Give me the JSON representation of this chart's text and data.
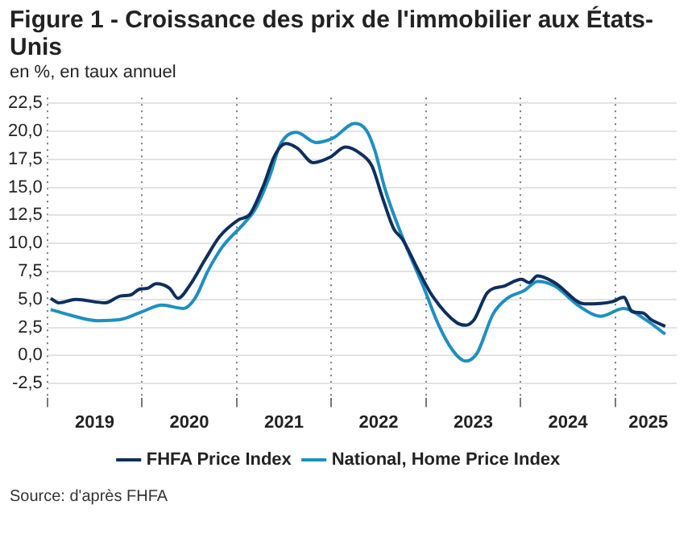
{
  "chart_data": {
    "type": "line",
    "title": "Figure 1 - Croissance des prix de l'immobilier aux États-Unis",
    "subtitle": "en %, en taux annuel",
    "annotations": [
      "Source: d'après FHFA"
    ],
    "series": [
      {
        "name": "FHFA Price Index",
        "color": "#0d2f5e",
        "x": [
          2019.035,
          2019.12,
          2019.3,
          2019.61,
          2019.77,
          2019.88,
          2019.97,
          2020.06,
          2020.15,
          2020.29,
          2020.38,
          2020.5,
          2020.67,
          2020.82,
          2021.02,
          2021.14,
          2021.29,
          2021.4,
          2021.52,
          2021.64,
          2021.81,
          2021.99,
          2022.15,
          2022.31,
          2022.43,
          2022.54,
          2022.66,
          2022.75,
          2022.92,
          2023.07,
          2023.33,
          2023.42,
          2023.51,
          2023.65,
          2023.83,
          2024.01,
          2024.09,
          2024.18,
          2024.36,
          2024.68,
          2024.97,
          2025.09,
          2025.18,
          2025.29,
          2025.38,
          2025.53
        ],
        "values": [
          5.1,
          4.7,
          5.0,
          4.7,
          5.3,
          5.4,
          5.9,
          6.0,
          6.4,
          6.0,
          5.1,
          6.2,
          8.6,
          10.6,
          12.1,
          12.6,
          15.3,
          17.8,
          18.9,
          18.5,
          17.2,
          17.7,
          18.6,
          18.0,
          16.9,
          14.1,
          11.3,
          10.4,
          7.6,
          5.3,
          2.9,
          2.7,
          3.2,
          5.6,
          6.2,
          6.8,
          6.5,
          7.1,
          6.5,
          4.6,
          4.8,
          5.2,
          3.9,
          3.8,
          3.2,
          2.6
        ]
      },
      {
        "name": "National, Home Price Index",
        "color": "#1f8fbf",
        "x": [
          2019.035,
          2019.24,
          2019.53,
          2019.77,
          2020.0,
          2020.21,
          2020.44,
          2020.56,
          2020.7,
          2020.85,
          2021.08,
          2021.2,
          2021.35,
          2021.46,
          2021.63,
          2021.84,
          2022.02,
          2022.25,
          2022.37,
          2022.46,
          2022.57,
          2022.75,
          2022.98,
          2023.13,
          2023.28,
          2023.42,
          2023.54,
          2023.71,
          2023.86,
          2024.04,
          2024.18,
          2024.36,
          2024.62,
          2024.85,
          2025.09,
          2025.32,
          2025.53
        ],
        "values": [
          4.1,
          3.6,
          3.1,
          3.2,
          3.9,
          4.5,
          4.2,
          5.1,
          7.6,
          9.7,
          11.8,
          13.1,
          16.0,
          18.8,
          19.9,
          19.0,
          19.4,
          20.7,
          20.1,
          18.3,
          14.8,
          10.6,
          6.0,
          2.8,
          0.5,
          -0.5,
          0.2,
          3.7,
          5.1,
          5.8,
          6.6,
          6.2,
          4.4,
          3.5,
          4.2,
          3.2,
          1.9
        ]
      }
    ],
    "xlim": [
      2019,
      2025.65
    ],
    "xticks": [
      {
        "value": 2019,
        "label": null
      },
      {
        "value": 2019.5,
        "label": "2019"
      },
      {
        "value": 2020,
        "label": null
      },
      {
        "value": 2020.5,
        "label": "2020"
      },
      {
        "value": 2021,
        "label": null
      },
      {
        "value": 2021.5,
        "label": "2021"
      },
      {
        "value": 2022,
        "label": null
      },
      {
        "value": 2022.5,
        "label": "2022"
      },
      {
        "value": 2023,
        "label": null
      },
      {
        "value": 2023.5,
        "label": "2023"
      },
      {
        "value": 2024,
        "label": null
      },
      {
        "value": 2024.5,
        "label": "2024"
      },
      {
        "value": 2025,
        "label": null
      },
      {
        "value": 2025.35,
        "label": "2025"
      }
    ],
    "ylim": [
      -3.75,
      23
    ],
    "yticks": [
      {
        "value": -2.5,
        "label": "-2,5"
      },
      {
        "value": 0,
        "label": "0,0"
      },
      {
        "value": 2.5,
        "label": "2,5"
      },
      {
        "value": 5,
        "label": "5,0"
      },
      {
        "value": 7.5,
        "label": "7,5"
      },
      {
        "value": 10,
        "label": "10,0"
      },
      {
        "value": 12.5,
        "label": "12,5"
      },
      {
        "value": 15,
        "label": "15,0"
      },
      {
        "value": 17.5,
        "label": "17,5"
      },
      {
        "value": 20,
        "label": "20,0"
      },
      {
        "value": 22.5,
        "label": "22,5"
      }
    ],
    "grid": true,
    "legend": "bottom",
    "marker": "none",
    "line_style": "solid"
  }
}
